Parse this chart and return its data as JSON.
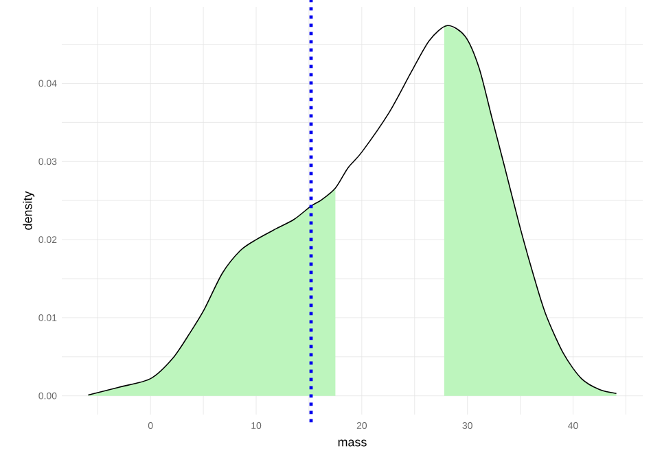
{
  "chart_data": {
    "type": "line",
    "xlabel": "mass",
    "ylabel": "density",
    "xlim": [
      -8.4,
      46.6
    ],
    "ylim": [
      -0.0024,
      0.0498
    ],
    "xticks": [
      {
        "value": -5,
        "label": null
      },
      0,
      {
        "value": 5,
        "label": null
      },
      10,
      {
        "value": 15,
        "label": null
      },
      20,
      {
        "value": 25,
        "label": null
      },
      30,
      {
        "value": 35,
        "label": null
      },
      40,
      {
        "value": 45,
        "label": null
      }
    ],
    "yticks": [
      {
        "value": 0,
        "label": "0.00"
      },
      {
        "value": 0.005,
        "label": null
      },
      {
        "value": 0.01,
        "label": "0.01"
      },
      {
        "value": 0.015,
        "label": null
      },
      {
        "value": 0.02,
        "label": "0.02"
      },
      {
        "value": 0.025,
        "label": null
      },
      {
        "value": 0.03,
        "label": "0.03"
      },
      {
        "value": 0.035,
        "label": null
      },
      {
        "value": 0.04,
        "label": "0.04"
      },
      {
        "value": 0.045,
        "label": null
      }
    ],
    "grid": true,
    "series": [
      {
        "type": "area",
        "color": "#bdf5bd",
        "x": [
          -5.9,
          -3.0,
          0,
          2.1,
          3.8,
          5.1,
          6.8,
          8.5,
          10,
          11.9,
          13.6,
          15.2,
          16.2,
          17.5
        ],
        "values": [
          0.0001,
          0.0011,
          0.0022,
          0.0048,
          0.0082,
          0.0111,
          0.0157,
          0.0186,
          0.02,
          0.0214,
          0.0226,
          0.0243,
          0.0251,
          0.0265
        ]
      },
      {
        "type": "area",
        "color": "#bdf5bd",
        "x": [
          27.8,
          28.1,
          29.8,
          31.1,
          32.3,
          33.6,
          34.9,
          36.2,
          37.4,
          39.1,
          40.8,
          42.5,
          44.1
        ],
        "values": [
          0.0473,
          0.0474,
          0.046,
          0.042,
          0.0357,
          0.0289,
          0.022,
          0.0157,
          0.0105,
          0.0054,
          0.0022,
          0.0008,
          0.0003
        ]
      },
      {
        "color": "#000000",
        "x": [
          -5.9,
          -3.0,
          0,
          2.1,
          3.8,
          5.1,
          6.8,
          8.5,
          10,
          11.9,
          13.6,
          15.2,
          16.2,
          17.5,
          18.7,
          20.0,
          22.6,
          24.7,
          26.4,
          28.1,
          29.8,
          31.1,
          32.3,
          33.6,
          34.9,
          36.2,
          37.4,
          39.1,
          40.8,
          42.5,
          44.1
        ],
        "values": [
          0.0001,
          0.0011,
          0.0022,
          0.0048,
          0.0082,
          0.0111,
          0.0157,
          0.0186,
          0.02,
          0.0214,
          0.0226,
          0.0243,
          0.0251,
          0.0266,
          0.0292,
          0.0312,
          0.0363,
          0.0415,
          0.0455,
          0.0474,
          0.046,
          0.042,
          0.0357,
          0.0289,
          0.022,
          0.0157,
          0.0105,
          0.0054,
          0.0022,
          0.0008,
          0.0003
        ]
      }
    ],
    "ref_lines": [
      {
        "axis": "x",
        "value": 15.2,
        "color": "#0000ee",
        "line_style": "dotted"
      }
    ]
  }
}
